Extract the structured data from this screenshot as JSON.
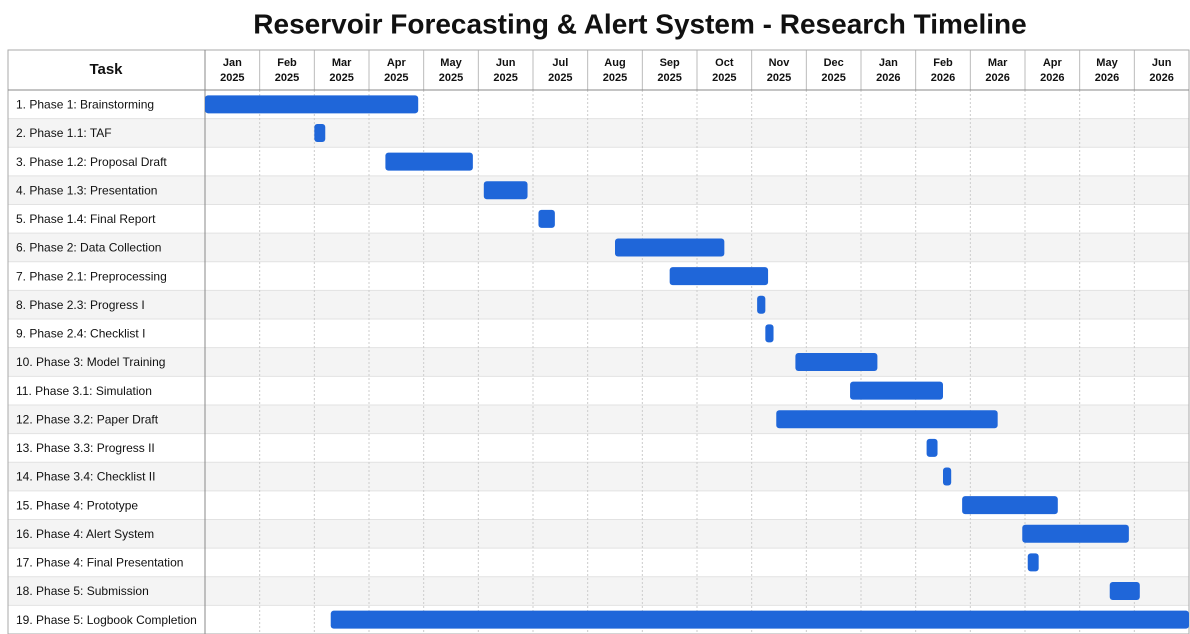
{
  "chart_data": {
    "type": "gantt",
    "title": "Reservoir Forecasting & Alert System - Research Timeline",
    "task_header": "Task",
    "months": [
      [
        "Jan",
        "2025"
      ],
      [
        "Feb",
        "2025"
      ],
      [
        "Mar",
        "2025"
      ],
      [
        "Apr",
        "2025"
      ],
      [
        "May",
        "2025"
      ],
      [
        "Jun",
        "2025"
      ],
      [
        "Jul",
        "2025"
      ],
      [
        "Aug",
        "2025"
      ],
      [
        "Sep",
        "2025"
      ],
      [
        "Oct",
        "2025"
      ],
      [
        "Nov",
        "2025"
      ],
      [
        "Dec",
        "2025"
      ],
      [
        "Jan",
        "2026"
      ],
      [
        "Feb",
        "2026"
      ],
      [
        "Mar",
        "2026"
      ],
      [
        "Apr",
        "2026"
      ],
      [
        "May",
        "2026"
      ],
      [
        "Jun",
        "2026"
      ]
    ],
    "xlim": [
      0,
      18
    ],
    "color": "#1f66d9",
    "tasks": [
      {
        "name": "1. Phase 1: Brainstorming",
        "start": 0,
        "end": 3.9
      },
      {
        "name": "2. Phase 1.1: TAF",
        "start": 2.0,
        "end": 2.2
      },
      {
        "name": "3. Phase 1.2: Proposal Draft",
        "start": 3.3,
        "end": 4.9
      },
      {
        "name": "4. Phase 1.3: Presentation",
        "start": 5.1,
        "end": 5.9
      },
      {
        "name": "5. Phase 1.4: Final Report",
        "start": 6.1,
        "end": 6.4
      },
      {
        "name": "6. Phase 2: Data Collection",
        "start": 7.5,
        "end": 9.5
      },
      {
        "name": "7. Phase 2.1: Preprocessing",
        "start": 8.5,
        "end": 10.3
      },
      {
        "name": "8. Phase 2.3: Progress I",
        "start": 10.1,
        "end": 10.25
      },
      {
        "name": "9. Phase 2.4: Checklist I",
        "start": 10.25,
        "end": 10.4
      },
      {
        "name": "10.  Phase 3: Model Training",
        "start": 10.8,
        "end": 12.3
      },
      {
        "name": "11.  Phase 3.1: Simulation",
        "start": 11.8,
        "end": 13.5
      },
      {
        "name": "12.  Phase 3.2: Paper Draft",
        "start": 10.45,
        "end": 14.5
      },
      {
        "name": "13.  Phase 3.3: Progress II",
        "start": 13.2,
        "end": 13.4
      },
      {
        "name": "14.  Phase 3.4: Checklist II",
        "start": 13.5,
        "end": 13.65
      },
      {
        "name": "15.  Phase 4: Prototype",
        "start": 13.85,
        "end": 15.6
      },
      {
        "name": "16.  Phase 4: Alert System",
        "start": 14.95,
        "end": 16.9
      },
      {
        "name": "17.  Phase 4: Final Presentation",
        "start": 15.05,
        "end": 15.25
      },
      {
        "name": "18.  Phase 5: Submission",
        "start": 16.55,
        "end": 17.1
      },
      {
        "name": "19.  Phase 5: Logbook Completion",
        "start": 2.3,
        "end": 18
      }
    ]
  }
}
